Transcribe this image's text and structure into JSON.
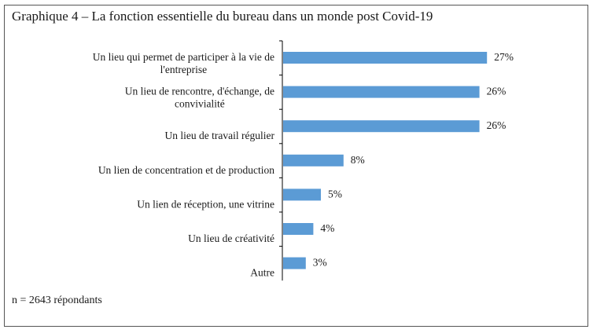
{
  "title": "Graphique 4 – La fonction essentielle du bureau dans un monde post Covid-19",
  "note": "n = 2643 répondants",
  "colors": {
    "bar": "#5b9bd5",
    "axis": "#000000"
  },
  "chart_data": {
    "type": "bar",
    "orientation": "horizontal",
    "categories": [
      [
        "Un lieu qui permet de participer à la vie de",
        "l'entreprise"
      ],
      [
        "Un lieu de rencontre, d'échange, de",
        "convivialité"
      ],
      [
        "Un lieu de travail régulier"
      ],
      [
        "Un lien de concentration et de production"
      ],
      [
        "Un lien de réception, une vitrine"
      ],
      [
        "Un lieu de créativité"
      ],
      [
        "Autre"
      ]
    ],
    "values": [
      27,
      26,
      26,
      8,
      5,
      4,
      3
    ],
    "value_labels": [
      "27%",
      "26%",
      "26%",
      "8%",
      "5%",
      "4%",
      "3%"
    ],
    "xlim": [
      0,
      30
    ],
    "grid": false,
    "legend": "none"
  }
}
